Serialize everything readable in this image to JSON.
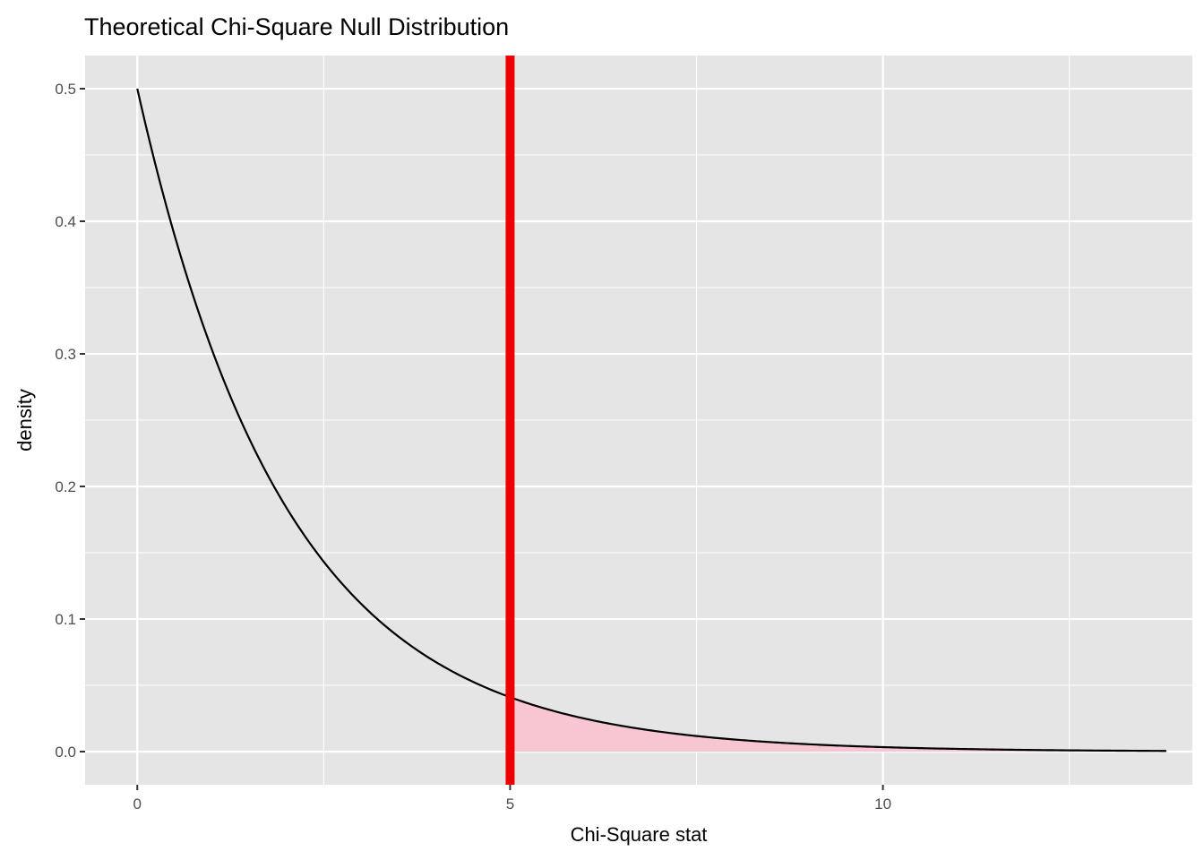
{
  "chart_data": {
    "type": "area",
    "title": "Theoretical Chi-Square Null Distribution",
    "xlabel": "Chi-Square stat",
    "ylabel": "density",
    "xlim": [
      -0.7,
      14.15
    ],
    "ylim": [
      -0.025,
      0.525
    ],
    "x_ticks": [
      0,
      5,
      10
    ],
    "x_tick_labels": [
      "0",
      "5",
      "10"
    ],
    "y_ticks": [
      0.0,
      0.1,
      0.2,
      0.3,
      0.4,
      0.5
    ],
    "y_tick_labels": [
      "0.0",
      "0.1",
      "0.2",
      "0.3",
      "0.4",
      "0.5"
    ],
    "x_minor_ticks": [
      2.5,
      7.5,
      12.5
    ],
    "y_minor_ticks": [
      0.05,
      0.15,
      0.25,
      0.35,
      0.45
    ],
    "grid": true,
    "background_color": "#e5e5e5",
    "grid_color": "#ffffff",
    "series": [
      {
        "type": "line",
        "color": "#000000",
        "x": [
          0,
          0.5,
          1,
          1.5,
          2,
          2.5,
          3,
          3.5,
          4,
          4.5,
          5,
          5.5,
          6,
          6.5,
          7,
          7.5,
          8,
          8.5,
          9,
          9.5,
          10,
          10.5,
          11,
          11.5,
          12,
          12.5,
          13,
          13.5,
          13.8
        ],
        "y": [
          0.5,
          0.389,
          0.303,
          0.236,
          0.184,
          0.143,
          0.112,
          0.087,
          0.068,
          0.053,
          0.041,
          0.032,
          0.025,
          0.019,
          0.015,
          0.012,
          0.009,
          0.007,
          0.0056,
          0.0043,
          0.0034,
          0.0026,
          0.002,
          0.0016,
          0.0012,
          0.001,
          0.0008,
          0.0006,
          0.0005
        ]
      }
    ],
    "shaded_region": {
      "from": 5,
      "to": 13.8,
      "color": "#f8c6d2"
    },
    "vline": {
      "x": 5,
      "color": "#ee0000"
    }
  }
}
